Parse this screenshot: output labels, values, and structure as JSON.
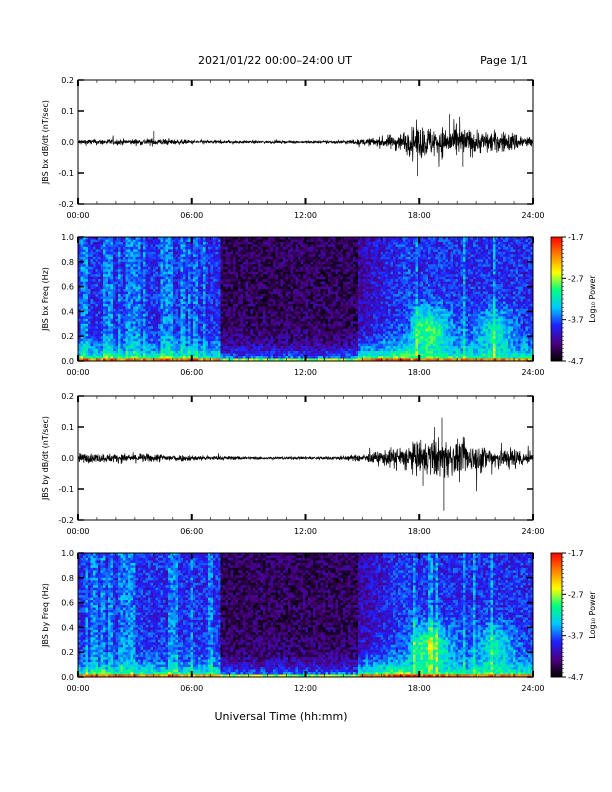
{
  "header": {
    "title": "2021/01/22  00:00–24:00 UT",
    "page": "Page 1/1"
  },
  "xaxis_label": "Universal Time (hh:mm)",
  "colors": {
    "trace": "#000000",
    "colormap": [
      "#000000",
      "#4b0082",
      "#2020ff",
      "#00c8ff",
      "#00ff80",
      "#ffff00",
      "#ff8000",
      "#ff0000"
    ]
  },
  "chart_data": [
    {
      "type": "line",
      "ylabel": "JBS bx dB/dt (nT/sec)",
      "x_ticks": [
        "00:00",
        "06:00",
        "12:00",
        "18:00",
        "24:00"
      ],
      "xlim": [
        0,
        24
      ],
      "ylim": [
        -0.2,
        0.2
      ],
      "y_ticks": [
        "0.2",
        "0.1",
        "0.0",
        "-0.1",
        "-0.2"
      ],
      "envelope": {
        "hours": [
          0,
          3,
          4,
          6,
          8,
          10,
          12,
          13,
          14,
          15,
          16,
          17,
          18,
          19,
          20,
          21,
          22,
          23,
          24
        ],
        "amplitude": [
          0.012,
          0.012,
          0.015,
          0.008,
          0.006,
          0.005,
          0.005,
          0.006,
          0.008,
          0.012,
          0.022,
          0.04,
          0.07,
          0.06,
          0.065,
          0.05,
          0.045,
          0.04,
          0.02
        ]
      },
      "spikes": [
        {
          "x": 4.0,
          "y": 0.035
        },
        {
          "x": 17.9,
          "y": -0.11
        },
        {
          "x": 19.6,
          "y": 0.09
        },
        {
          "x": 20.3,
          "y": -0.08
        }
      ]
    },
    {
      "type": "heatmap",
      "ylabel": "JBS bx Freq (Hz)",
      "x_ticks": [
        "00:00",
        "06:00",
        "12:00",
        "18:00",
        "24:00"
      ],
      "xlim": [
        0,
        24
      ],
      "ylim": [
        0.0,
        1.0
      ],
      "y_ticks": [
        "1.0",
        "0.8",
        "0.6",
        "0.4",
        "0.2",
        "0.0"
      ],
      "colorbar": {
        "label": "Log₁₀ Power",
        "ticks": [
          "-1.7",
          "-2.7",
          "-3.7",
          "-4.7"
        ],
        "range": [
          -4.7,
          -1.7
        ]
      },
      "quiet_interval_hours": [
        7.5,
        14.8
      ],
      "enhanced_activity_hours": [
        17.5,
        24
      ]
    },
    {
      "type": "line",
      "ylabel": "JBS by dB/dt (nT/sec)",
      "x_ticks": [
        "00:00",
        "06:00",
        "12:00",
        "18:00",
        "24:00"
      ],
      "xlim": [
        0,
        24
      ],
      "ylim": [
        -0.2,
        0.2
      ],
      "y_ticks": [
        "0.2",
        "0.1",
        "0.0",
        "-0.1",
        "-0.2"
      ],
      "envelope": {
        "hours": [
          0,
          2,
          4,
          6,
          8,
          10,
          12,
          13,
          14,
          15,
          16,
          17,
          18,
          19,
          20,
          21,
          22,
          23,
          24
        ],
        "amplitude": [
          0.02,
          0.018,
          0.018,
          0.012,
          0.008,
          0.006,
          0.006,
          0.007,
          0.01,
          0.015,
          0.03,
          0.05,
          0.07,
          0.08,
          0.07,
          0.06,
          0.05,
          0.045,
          0.025
        ]
      },
      "spikes": [
        {
          "x": 19.2,
          "y": 0.13
        },
        {
          "x": 19.3,
          "y": -0.17
        },
        {
          "x": 18.8,
          "y": 0.1
        },
        {
          "x": 18.2,
          "y": -0.09
        }
      ]
    },
    {
      "type": "heatmap",
      "ylabel": "JBS by Freq (Hz)",
      "x_ticks": [
        "00:00",
        "06:00",
        "12:00",
        "18:00",
        "24:00"
      ],
      "xlim": [
        0,
        24
      ],
      "ylim": [
        0.0,
        1.0
      ],
      "y_ticks": [
        "1.0",
        "0.8",
        "0.6",
        "0.4",
        "0.2",
        "0.0"
      ],
      "colorbar": {
        "label": "Log₁₀ Power",
        "ticks": [
          "-1.7",
          "-2.7",
          "-3.7",
          "-4.7"
        ],
        "range": [
          -4.7,
          -1.7
        ]
      },
      "quiet_interval_hours": [
        7.5,
        14.8
      ],
      "enhanced_activity_hours": [
        17.5,
        24
      ]
    }
  ]
}
